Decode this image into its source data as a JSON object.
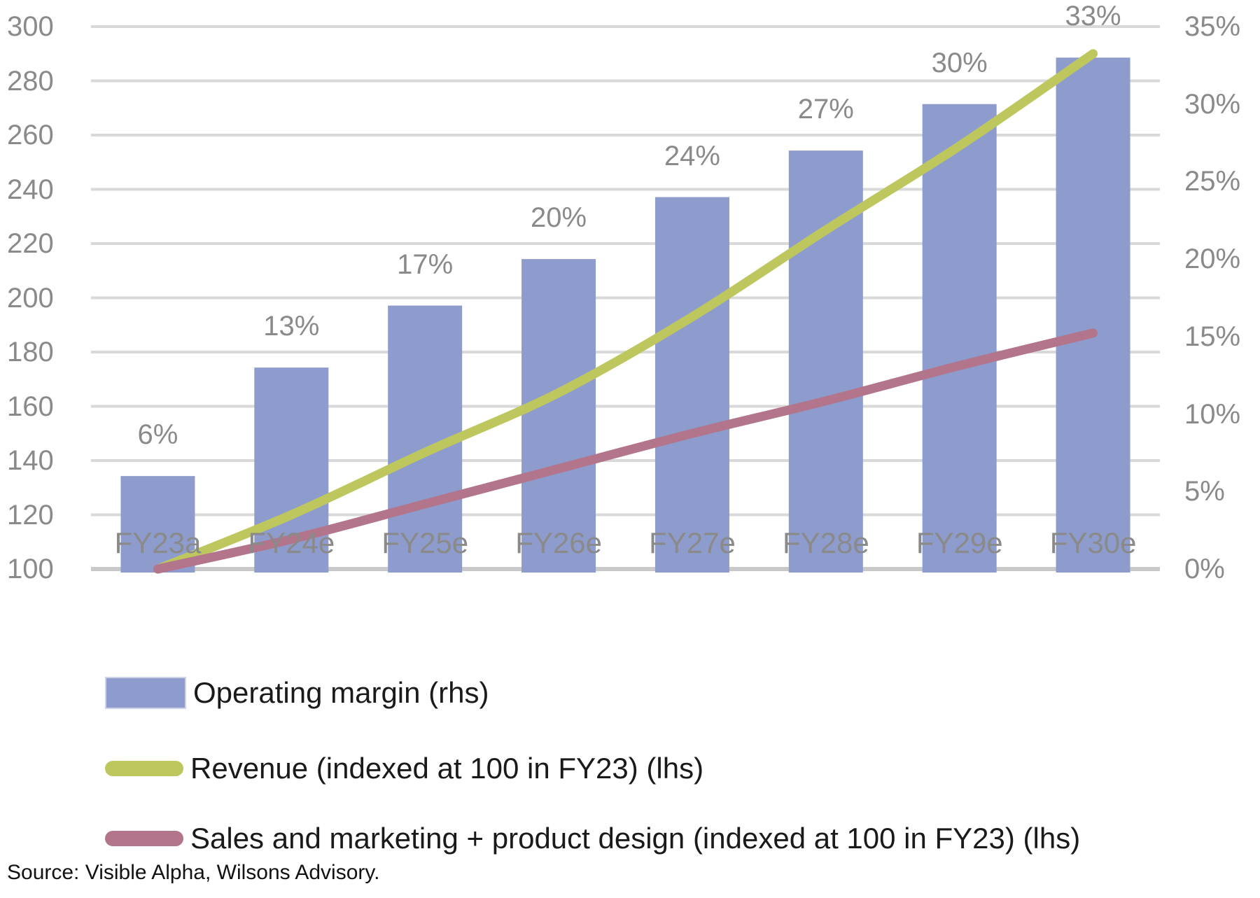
{
  "page": {
    "background": "#ffffff"
  },
  "source_note": "Source: Visible Alpha, Wilsons Advisory.",
  "legend": {
    "items": [
      {
        "label": "Operating margin (rhs)",
        "swatch": "bar",
        "color": "#8e9ccd"
      },
      {
        "label": "Revenue (indexed at 100 in FY23) (lhs)",
        "swatch": "line",
        "color": "#bdc75e"
      },
      {
        "label": "Sales and marketing + product design (indexed at 100 in FY23) (lhs)",
        "swatch": "line",
        "color": "#b3758b"
      }
    ]
  },
  "chart_data": {
    "type": "bar",
    "subtype": "bar-line-combo",
    "categories": [
      "FY23a",
      "FY24e",
      "FY25e",
      "FY26e",
      "FY27e",
      "FY28e",
      "FY29e",
      "FY30e"
    ],
    "series": [
      {
        "name": "Operating margin (rhs)",
        "type": "bar",
        "axis": "right",
        "values": [
          6,
          13,
          17,
          20,
          24,
          27,
          30,
          33
        ],
        "labels": [
          "6%",
          "13%",
          "17%",
          "20%",
          "24%",
          "27%",
          "30%",
          "33%"
        ],
        "color": "#8e9ccd"
      },
      {
        "name": "Revenue (indexed at 100 in FY23) (lhs)",
        "type": "line",
        "axis": "left",
        "values": [
          100,
          120,
          143,
          165,
          193,
          225,
          256,
          290
        ],
        "color": "#bdc75e"
      },
      {
        "name": "Sales and marketing + product design (indexed at 100 in FY23) (lhs)",
        "type": "line",
        "axis": "left",
        "values": [
          100,
          111,
          124,
          137,
          150,
          162,
          175,
          187
        ],
        "color": "#b3758b"
      }
    ],
    "left_axis": {
      "min": 100,
      "max": 300,
      "step": 20,
      "ticks": [
        "300",
        "280",
        "260",
        "240",
        "220",
        "200",
        "180",
        "160",
        "140",
        "120",
        "100"
      ]
    },
    "right_axis": {
      "min": 0,
      "max": 35,
      "step": 5,
      "ticks": [
        "35%",
        "30%",
        "25%",
        "20%",
        "15%",
        "10%",
        "5%",
        "0%"
      ]
    },
    "grid": true,
    "legend_position": "bottom-left",
    "colors": {
      "gridline": "#d9d9d9",
      "baseline": "#c9c9c9",
      "tick_label": "#8a8a8a",
      "bar_label": "#8a8a8a",
      "legend_text": "#1a1a1a"
    }
  }
}
